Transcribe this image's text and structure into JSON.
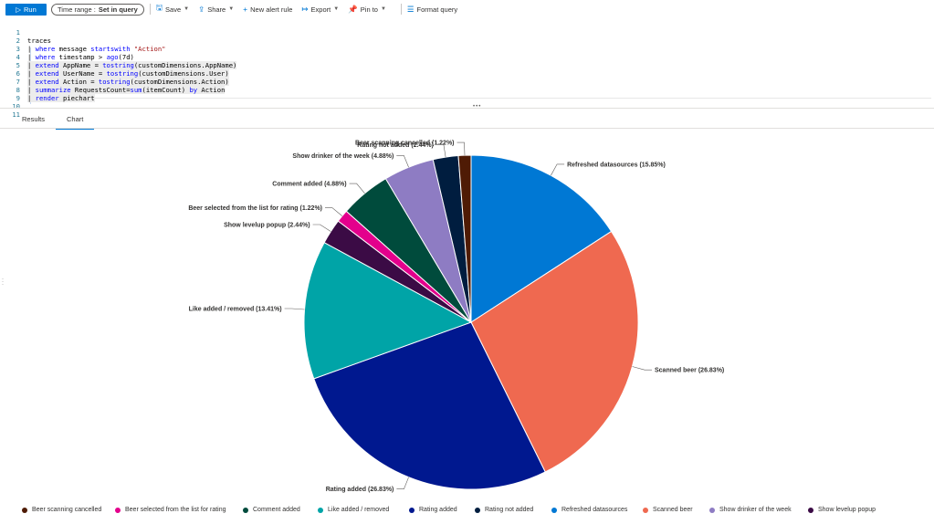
{
  "toolbar": {
    "run_label": "Run",
    "time_range_label": "Time range :",
    "time_range_value": "Set in query",
    "save_label": "Save",
    "share_label": "Share",
    "new_alert_label": "New alert rule",
    "export_label": "Export",
    "pin_label": "Pin to",
    "format_label": "Format query"
  },
  "editor": {
    "lines": [
      {
        "num": "1",
        "code": "traces"
      },
      {
        "num": "2",
        "code": "| where message startswith \"Action\""
      },
      {
        "num": "3",
        "code": "| where timestamp > ago(7d)"
      },
      {
        "num": "4",
        "code": "| extend AppName = tostring(customDimensions.AppName)"
      },
      {
        "num": "5",
        "code": "| extend UserName = tostring(customDimensions.User)"
      },
      {
        "num": "6",
        "code": "| extend Action = tostring(customDimensions.Action)"
      },
      {
        "num": "7",
        "code": "| summarize RequestsCount=sum(itemCount) by Action"
      },
      {
        "num": "8",
        "code": "| render piechart"
      },
      {
        "num": "9",
        "code": ""
      },
      {
        "num": "10",
        "code": ""
      },
      {
        "num": "11",
        "code": ""
      }
    ]
  },
  "tabs": {
    "results_label": "Results",
    "chart_label": "Chart"
  },
  "chart_data": {
    "type": "pie",
    "start_order": [
      {
        "label": "Refreshed datasources",
        "value": 15.85,
        "color": "#0078d4"
      },
      {
        "label": "Scanned beer",
        "value": 26.83,
        "color": "#ef6950"
      },
      {
        "label": "Rating added",
        "value": 26.83,
        "color": "#00188f"
      },
      {
        "label": "Like added / removed",
        "value": 13.41,
        "color": "#00a4a7"
      },
      {
        "label": "Show levelup popup",
        "value": 2.44,
        "color": "#3b0b45"
      },
      {
        "label": "Beer selected from the list for rating",
        "value": 1.22,
        "color": "#e3008c"
      },
      {
        "label": "Comment added",
        "value": 4.88,
        "color": "#004b3c"
      },
      {
        "label": "Show drinker of the week",
        "value": 4.88,
        "color": "#8e7cc3"
      },
      {
        "label": "Rating not added",
        "value": 2.44,
        "color": "#001d3f"
      },
      {
        "label": "Beer scanning cancelled",
        "value": 1.22,
        "color": "#4f1b05"
      }
    ],
    "callouts": [
      "Refreshed datasources (15.85%)",
      "Scanned beer (26.83%)",
      "Rating added (26.83%)",
      "Like added / removed (13.41%)",
      "Show levelup popup (2.44%)",
      "Beer selected from the list for rating (1.22%)",
      "Comment added (4.88%)",
      "Show drinker of the week (4.88%)",
      "Rating not added (2.44%)",
      "Beer scanning cancelled (1.22%)"
    ]
  },
  "legend": [
    {
      "label": "Beer scanning cancelled",
      "color": "#4f1b05"
    },
    {
      "label": "Beer selected from the list for rating",
      "color": "#e3008c"
    },
    {
      "label": "Comment added",
      "color": "#004b3c"
    },
    {
      "label": "Like added / removed",
      "color": "#00a4a7"
    },
    {
      "label": "Rating added",
      "color": "#00188f"
    },
    {
      "label": "Rating not added",
      "color": "#001d3f"
    },
    {
      "label": "Refreshed datasources",
      "color": "#0078d4"
    },
    {
      "label": "Scanned beer",
      "color": "#ef6950"
    },
    {
      "label": "Show drinker of the week",
      "color": "#8e7cc3"
    },
    {
      "label": "Show levelup popup",
      "color": "#3b0b45"
    }
  ]
}
